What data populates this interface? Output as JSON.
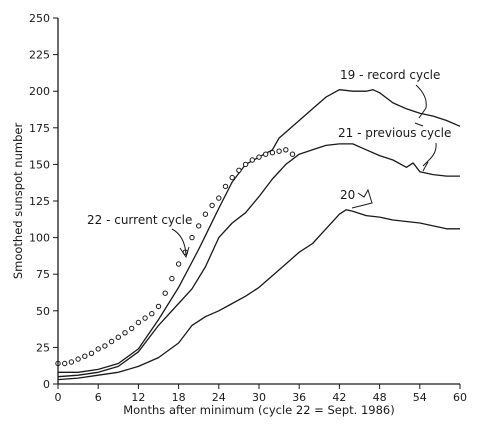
{
  "chart_data": {
    "type": "line",
    "title": "",
    "xlabel": "Months after minimum (cycle 22 = Sept. 1986)",
    "ylabel": "Smoothed sunspot number",
    "xlim": [
      0,
      60
    ],
    "ylim": [
      0,
      250
    ],
    "xticks": [
      0,
      6,
      12,
      18,
      24,
      30,
      36,
      42,
      48,
      54,
      60
    ],
    "yticks": [
      0,
      25,
      50,
      75,
      100,
      125,
      150,
      175,
      200,
      225,
      250
    ],
    "grid": false,
    "legend": "none",
    "series": [
      {
        "label": "19 - record cycle",
        "style": "line",
        "x": [
          0,
          3,
          6,
          9,
          12,
          15,
          18,
          21,
          24,
          26,
          28,
          30,
          32,
          33,
          34,
          36,
          38,
          40,
          42,
          44,
          46,
          47,
          48,
          50,
          52,
          54,
          56,
          58,
          60
        ],
        "y": [
          8,
          8,
          10,
          14,
          24,
          44,
          66,
          92,
          120,
          138,
          150,
          155,
          160,
          168,
          172,
          180,
          188,
          196,
          201,
          200,
          200,
          201,
          199,
          192,
          188,
          185,
          183,
          180,
          176
        ]
      },
      {
        "label": "21 - previous cycle",
        "style": "line",
        "x": [
          0,
          3,
          6,
          9,
          12,
          15,
          18,
          20,
          22,
          24,
          26,
          28,
          30,
          32,
          34,
          36,
          38,
          40,
          42,
          44,
          46,
          48,
          50,
          52,
          53,
          54,
          56,
          58,
          60
        ],
        "y": [
          5,
          6,
          8,
          12,
          22,
          40,
          55,
          65,
          80,
          100,
          110,
          117,
          128,
          140,
          150,
          157,
          160,
          163,
          164,
          164,
          160,
          156,
          153,
          148,
          151,
          145,
          143,
          142,
          142
        ]
      },
      {
        "label": "20",
        "style": "line",
        "x": [
          0,
          3,
          6,
          9,
          12,
          15,
          18,
          20,
          22,
          24,
          26,
          28,
          30,
          32,
          34,
          36,
          38,
          40,
          42,
          43,
          44,
          46,
          48,
          50,
          52,
          54,
          56,
          58,
          60
        ],
        "y": [
          3,
          4,
          6,
          8,
          12,
          18,
          28,
          40,
          46,
          50,
          55,
          60,
          66,
          74,
          82,
          90,
          96,
          106,
          116,
          119,
          118,
          115,
          114,
          112,
          111,
          110,
          108,
          106,
          106
        ]
      },
      {
        "label": "22 - current cycle",
        "style": "points",
        "x": [
          0,
          1,
          2,
          3,
          4,
          5,
          6,
          7,
          8,
          9,
          10,
          11,
          12,
          13,
          14,
          15,
          16,
          17,
          18,
          19,
          20,
          21,
          22,
          23,
          24,
          25,
          26,
          27,
          28,
          29,
          30,
          31,
          32,
          33,
          34,
          35
        ],
        "y": [
          14,
          14,
          15,
          17,
          19,
          21,
          24,
          26,
          29,
          32,
          35,
          38,
          42,
          45,
          48,
          53,
          62,
          72,
          82,
          90,
          100,
          108,
          116,
          122,
          127,
          135,
          141,
          146,
          150,
          153,
          155,
          157,
          158,
          159,
          160,
          157
        ]
      }
    ],
    "annotations": [
      {
        "text": "19 - record cycle",
        "series": 0
      },
      {
        "text": "21 - previous cycle",
        "series": 1
      },
      {
        "text": "20",
        "series": 2
      },
      {
        "text": "22 - current cycle",
        "series": 3
      }
    ]
  }
}
